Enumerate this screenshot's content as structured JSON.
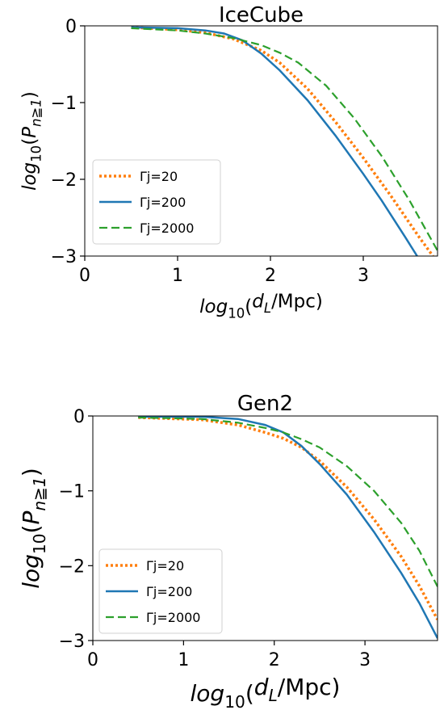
{
  "chart_data": [
    {
      "type": "line",
      "title": "IceCube",
      "xlabel": "log10(dL/Mpc)",
      "ylabel": "log10(Pn≧1)",
      "xlim": [
        0,
        3.8
      ],
      "ylim": [
        -3,
        0
      ],
      "xticks": [
        "0",
        "1",
        "2",
        "3"
      ],
      "yticks": [
        "0",
        "−1",
        "−2",
        "−3"
      ],
      "grid": false,
      "legend_position": "lower-left",
      "series": [
        {
          "name": "Γj=20",
          "color": "#ff7f0e",
          "style": "dotted",
          "points": [
            [
              0.5,
              -0.02
            ],
            [
              1.0,
              -0.05
            ],
            [
              1.3,
              -0.09
            ],
            [
              1.6,
              -0.17
            ],
            [
              1.9,
              -0.32
            ],
            [
              2.1,
              -0.48
            ],
            [
              2.4,
              -0.82
            ],
            [
              2.7,
              -1.25
            ],
            [
              3.0,
              -1.72
            ],
            [
              3.3,
              -2.22
            ],
            [
              3.6,
              -2.75
            ],
            [
              3.75,
              -3.0
            ]
          ]
        },
        {
          "name": "Γj=200",
          "color": "#1f77b4",
          "style": "solid",
          "points": [
            [
              0.5,
              -0.02
            ],
            [
              1.0,
              -0.03
            ],
            [
              1.3,
              -0.06
            ],
            [
              1.5,
              -0.1
            ],
            [
              1.7,
              -0.19
            ],
            [
              1.9,
              -0.36
            ],
            [
              2.1,
              -0.58
            ],
            [
              2.4,
              -0.97
            ],
            [
              2.7,
              -1.43
            ],
            [
              3.0,
              -1.93
            ],
            [
              3.2,
              -2.28
            ],
            [
              3.45,
              -2.75
            ],
            [
              3.58,
              -3.0
            ]
          ]
        },
        {
          "name": "Γj=2000",
          "color": "#2ca02c",
          "style": "dashed",
          "points": [
            [
              0.5,
              -0.03
            ],
            [
              1.0,
              -0.06
            ],
            [
              1.3,
              -0.1
            ],
            [
              1.6,
              -0.16
            ],
            [
              1.9,
              -0.25
            ],
            [
              2.1,
              -0.35
            ],
            [
              2.3,
              -0.48
            ],
            [
              2.6,
              -0.78
            ],
            [
              2.9,
              -1.2
            ],
            [
              3.2,
              -1.7
            ],
            [
              3.5,
              -2.28
            ],
            [
              3.8,
              -2.93
            ]
          ]
        }
      ]
    },
    {
      "type": "line",
      "title": "Gen2",
      "xlabel": "log10(dL/Mpc)",
      "ylabel": "log10(Pn≧1)",
      "xlim": [
        0,
        3.8
      ],
      "ylim": [
        -3,
        0
      ],
      "xticks": [
        "0",
        "1",
        "2",
        "3"
      ],
      "yticks": [
        "0",
        "−1",
        "−2",
        "−3"
      ],
      "grid": false,
      "legend_position": "lower-left",
      "series": [
        {
          "name": "Γj=20",
          "color": "#ff7f0e",
          "style": "dotted",
          "points": [
            [
              0.5,
              -0.02
            ],
            [
              1.2,
              -0.05
            ],
            [
              1.6,
              -0.12
            ],
            [
              1.9,
              -0.22
            ],
            [
              2.1,
              -0.3
            ],
            [
              2.3,
              -0.42
            ],
            [
              2.5,
              -0.6
            ],
            [
              2.8,
              -0.95
            ],
            [
              3.1,
              -1.38
            ],
            [
              3.4,
              -1.88
            ],
            [
              3.6,
              -2.27
            ],
            [
              3.8,
              -2.72
            ]
          ]
        },
        {
          "name": "Γj=200",
          "color": "#1f77b4",
          "style": "solid",
          "points": [
            [
              0.5,
              -0.01
            ],
            [
              1.2,
              -0.01
            ],
            [
              1.6,
              -0.04
            ],
            [
              1.9,
              -0.12
            ],
            [
              2.1,
              -0.22
            ],
            [
              2.3,
              -0.4
            ],
            [
              2.5,
              -0.64
            ],
            [
              2.8,
              -1.05
            ],
            [
              3.1,
              -1.55
            ],
            [
              3.4,
              -2.1
            ],
            [
              3.6,
              -2.5
            ],
            [
              3.8,
              -2.97
            ]
          ]
        },
        {
          "name": "Γj=2000",
          "color": "#2ca02c",
          "style": "dashed",
          "points": [
            [
              0.5,
              -0.02
            ],
            [
              1.2,
              -0.04
            ],
            [
              1.6,
              -0.09
            ],
            [
              1.9,
              -0.16
            ],
            [
              2.1,
              -0.22
            ],
            [
              2.3,
              -0.31
            ],
            [
              2.5,
              -0.42
            ],
            [
              2.8,
              -0.67
            ],
            [
              3.1,
              -1.0
            ],
            [
              3.4,
              -1.43
            ],
            [
              3.6,
              -1.8
            ],
            [
              3.8,
              -2.28
            ]
          ]
        }
      ]
    }
  ]
}
